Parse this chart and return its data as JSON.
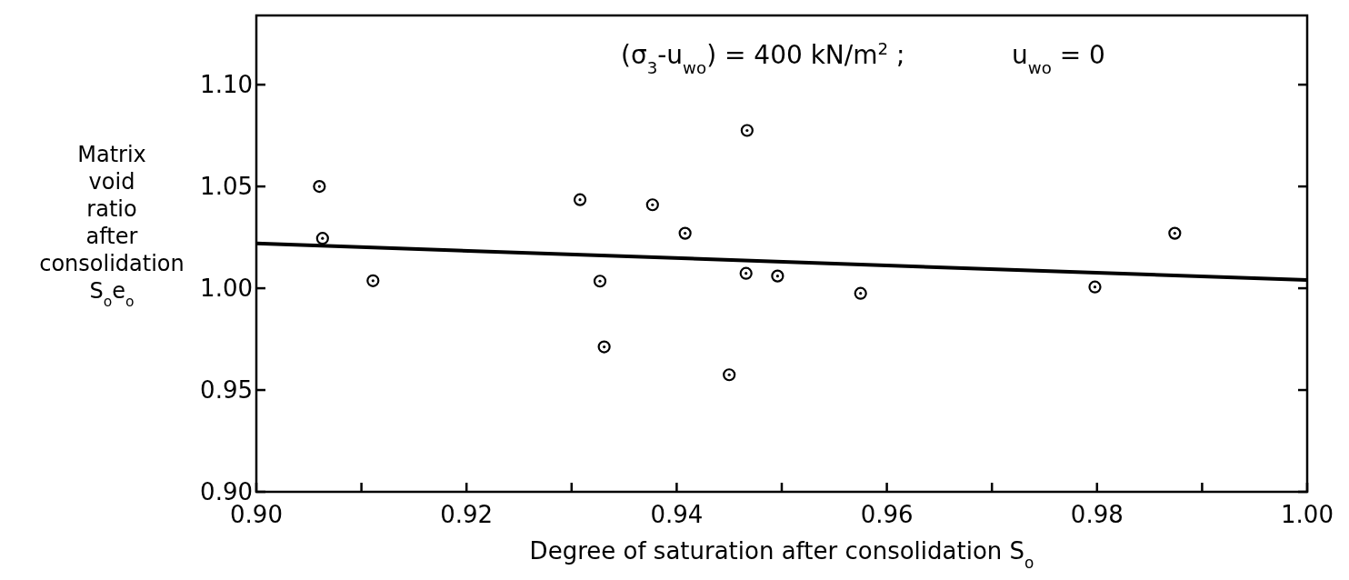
{
  "chart_data": {
    "type": "scatter",
    "xlabel": "Degree of saturation after consolidation S$_{o}$",
    "ylabel": "Matrix void ratio after consolidation S$_{o}$e$_{o}$",
    "annotations": [
      "(σ$_{3}$-u$_{wo}$) = 400 kN/m$^{2}$ ;",
      "u$_{wo}$ = 0"
    ],
    "xlim": [
      0.9,
      1.0
    ],
    "ylim": [
      0.9,
      1.134
    ],
    "xticks": [
      {
        "value": 0.9,
        "label": "0.90"
      },
      {
        "value": 0.91,
        "label": null
      },
      {
        "value": 0.92,
        "label": "0.92"
      },
      {
        "value": 0.93,
        "label": null
      },
      {
        "value": 0.94,
        "label": "0.94"
      },
      {
        "value": 0.95,
        "label": null
      },
      {
        "value": 0.96,
        "label": "0.96"
      },
      {
        "value": 0.97,
        "label": null
      },
      {
        "value": 0.98,
        "label": "0.98"
      },
      {
        "value": 0.99,
        "label": null
      },
      {
        "value": 1.0,
        "label": "1.00"
      }
    ],
    "yticks": [
      {
        "value": 0.9,
        "label": "0.90"
      },
      {
        "value": 0.95,
        "label": "0.95"
      },
      {
        "value": 1.0,
        "label": "1.00"
      },
      {
        "value": 1.05,
        "label": "1.05"
      },
      {
        "value": 1.1,
        "label": "1.10"
      }
    ],
    "grid": false,
    "marker": "circle",
    "series": [
      {
        "color": "#000000",
        "x": [
          0.906,
          0.9063,
          0.9111,
          0.9308,
          0.9327,
          0.9331,
          0.9377,
          0.9408,
          0.945,
          0.9467,
          0.9466,
          0.9496,
          0.9575,
          0.9798,
          0.9874
        ],
        "values": [
          1.05,
          1.0245,
          1.0037,
          1.0435,
          1.0035,
          0.9712,
          1.041,
          1.027,
          0.9575,
          1.0775,
          1.0073,
          1.006,
          0.9975,
          1.0006,
          1.027
        ]
      },
      {
        "type": "line",
        "color": "#000000",
        "x": [
          0.9,
          1.0
        ],
        "values": [
          1.022,
          1.004
        ],
        "marker": "none",
        "line_style": "solid"
      }
    ]
  }
}
